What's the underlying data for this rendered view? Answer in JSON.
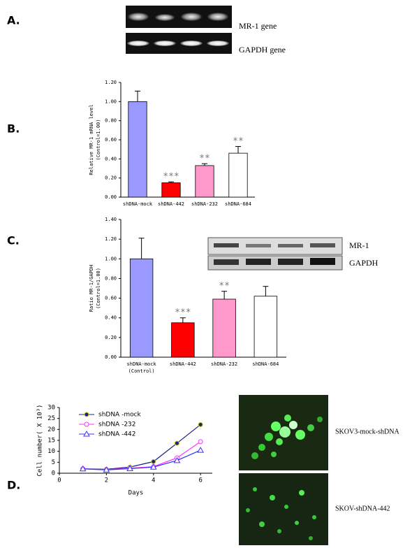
{
  "panel_labels": [
    "A.",
    "B.",
    "C.",
    "D."
  ],
  "gel_a_labels": [
    "MR-1 gene",
    "GAPDH gene"
  ],
  "gel_c_labels": [
    "MR-1",
    "GAPDH"
  ],
  "micrograph_labels": [
    "SKOV3-mock-shDNA",
    "SKOV-shDNA-442"
  ],
  "chart_data": [
    {
      "type": "bar",
      "y_label": [
        "Relative MR-1 mRNA level",
        "(Control=1.00)"
      ],
      "categories": [
        "shDNA-mock",
        "shDNA-442",
        "shDNA-232",
        "shDNA-684"
      ],
      "values": [
        1.0,
        0.15,
        0.33,
        0.46
      ],
      "errors": [
        0.11,
        0.01,
        0.02,
        0.07
      ],
      "annotations": [
        null,
        "***",
        "**",
        "**"
      ],
      "colors": [
        "#9999ff",
        "#ff0000",
        "#ff99cc",
        "#ffffff"
      ],
      "ylim": [
        0,
        1.2
      ],
      "yticks": [
        {
          "value": 0,
          "label": "0.00"
        },
        {
          "value": 0.2,
          "label": "0.20"
        },
        {
          "value": 0.4,
          "label": "0.40"
        },
        {
          "value": 0.6,
          "label": "0.60"
        },
        {
          "value": 0.8,
          "label": "0.80"
        },
        {
          "value": 1.0,
          "label": "1.00"
        },
        {
          "value": 1.2,
          "label": "1.20"
        }
      ]
    },
    {
      "type": "bar",
      "y_label": [
        "Ratio MR-1/GAPDH",
        "(Control=1.00)"
      ],
      "categories": [
        "shDNA-mock",
        "shDNA-442",
        "shDNA-232",
        "shDNA-684"
      ],
      "category_notes": [
        "(Control)",
        null,
        null,
        null
      ],
      "values": [
        1.0,
        0.35,
        0.59,
        0.62
      ],
      "errors": [
        0.21,
        0.05,
        0.08,
        0.1
      ],
      "annotations": [
        null,
        "***",
        "**",
        null
      ],
      "colors": [
        "#9999ff",
        "#ff0000",
        "#ff99cc",
        "#ffffff"
      ],
      "ylim": [
        0,
        1.4
      ],
      "yticks": [
        {
          "value": 0,
          "label": "0.00"
        },
        {
          "value": 0.2,
          "label": "0.20"
        },
        {
          "value": 0.4,
          "label": "0.40"
        },
        {
          "value": 0.6,
          "label": "0.60"
        },
        {
          "value": 0.8,
          "label": "0.80"
        },
        {
          "value": 1.0,
          "label": "1.00"
        },
        {
          "value": 1.2,
          "label": "1.20"
        },
        {
          "value": 1.4,
          "label": "1.40"
        }
      ]
    },
    {
      "type": "line",
      "x_label": "Days",
      "y_label": [
        "Cell number( X 10³)"
      ],
      "x": [
        1,
        2,
        3,
        4,
        5,
        6
      ],
      "series": [
        {
          "name": "shDNA -mock",
          "color": "#1a237e",
          "marker": "filled-circle",
          "values": [
            2,
            1.8,
            2.8,
            5.3,
            13.7,
            22.2
          ]
        },
        {
          "name": "shDNA -232",
          "color": "#ff33ff",
          "marker": "circle",
          "values": [
            2,
            1.6,
            2.3,
            3,
            7,
            14.4
          ]
        },
        {
          "name": "shDNA -442",
          "color": "#3333ff",
          "marker": "triangle",
          "values": [
            2,
            1.5,
            2.1,
            2.8,
            5.8,
            10.5
          ]
        }
      ],
      "xlim": [
        0,
        6.5
      ],
      "xticks": [
        0,
        2,
        4,
        6
      ],
      "ylim": [
        0,
        30
      ],
      "yticks": [
        0,
        5,
        10,
        15,
        20,
        25,
        30
      ]
    }
  ]
}
